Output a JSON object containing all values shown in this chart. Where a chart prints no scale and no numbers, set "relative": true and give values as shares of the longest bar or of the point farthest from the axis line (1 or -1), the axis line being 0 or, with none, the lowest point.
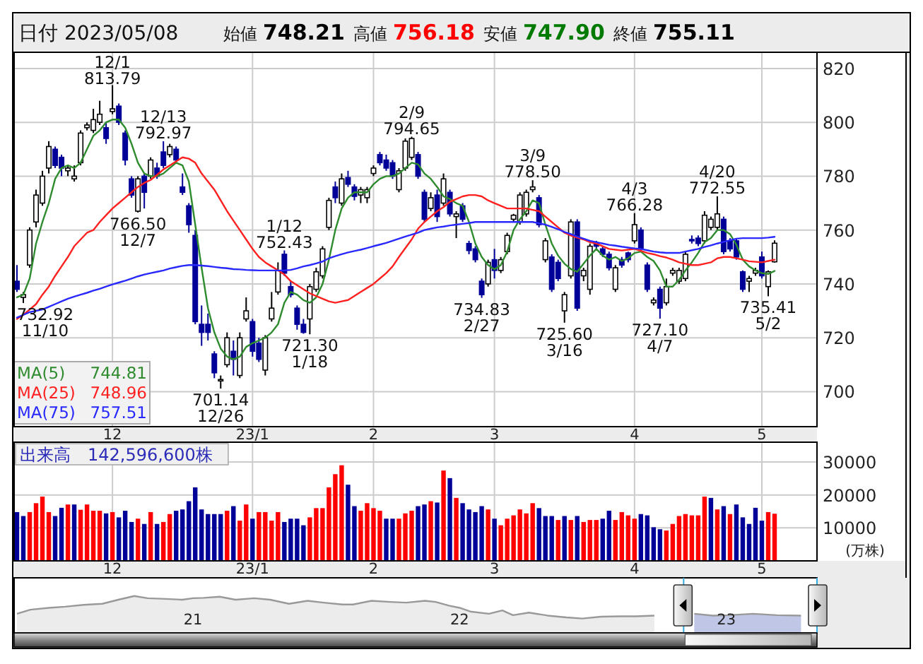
{
  "chart_data": [
    {
      "type": "candlestick",
      "title": "日付 2023/05/08",
      "annotations": [
        "始値 748.21",
        "高値 756.18",
        "安値 747.90",
        "終値 755.11",
        {
          "text": "12/1\n813.79",
          "y": 813.79
        },
        {
          "text": "12/13\n792.97",
          "y": 792.97
        },
        {
          "text": "1/12\n752.43",
          "y": 752.43
        },
        {
          "text": "2/9\n794.65",
          "y": 794.65
        },
        {
          "text": "3/9\n778.50",
          "y": 778.5
        },
        {
          "text": "4/3\n766.28",
          "y": 766.28
        },
        {
          "text": "4/20\n772.55",
          "y": 772.55
        },
        {
          "text": "732.92\n11/10",
          "y": 732.92
        },
        {
          "text": "766.50\n12/7",
          "y": 766.5
        },
        {
          "text": "701.14\n12/26",
          "y": 701.14
        },
        {
          "text": "721.30\n1/18",
          "y": 721.3
        },
        {
          "text": "734.83\n2/27",
          "y": 734.83
        },
        {
          "text": "725.60\n3/16",
          "y": 725.6
        },
        {
          "text": "727.10\n4/7",
          "y": 727.1
        },
        {
          "text": "735.41\n5/2",
          "y": 735.41
        }
      ],
      "categories": [
        null,
        null,
        null,
        null,
        null,
        null,
        null,
        null,
        null,
        null,
        null,
        null,
        null,
        null,
        null,
        "12",
        null,
        null,
        null,
        null,
        null,
        null,
        null,
        null,
        null,
        null,
        null,
        null,
        null,
        null,
        null,
        null,
        null,
        null,
        null,
        null,
        null,
        "23/1",
        null,
        null,
        null,
        null,
        null,
        null,
        null,
        null,
        null,
        null,
        null,
        null,
        null,
        null,
        null,
        null,
        null,
        null,
        "2",
        null,
        null,
        null,
        null,
        null,
        null,
        null,
        null,
        null,
        null,
        null,
        null,
        null,
        null,
        null,
        null,
        null,
        null,
        "3",
        null,
        null,
        null,
        null,
        null,
        null,
        null,
        null,
        null,
        null,
        null,
        null,
        null,
        null,
        null,
        null,
        null,
        null,
        null,
        null,
        null,
        "4",
        null,
        null,
        null,
        null,
        null,
        null,
        null,
        null,
        null,
        null,
        null,
        null,
        null,
        null,
        null,
        null,
        null,
        null,
        null,
        "5",
        null,
        null
      ],
      "ohlc": [
        [
          741,
          747,
          737,
          738
        ],
        [
          735,
          737,
          732.92,
          736
        ],
        [
          747,
          761,
          746,
          760
        ],
        [
          763,
          775,
          761,
          773
        ],
        [
          770,
          782,
          769,
          780
        ],
        [
          783,
          793,
          781,
          791
        ],
        [
          790,
          791,
          783,
          784
        ],
        [
          787,
          788,
          780,
          783
        ],
        [
          782,
          784,
          780,
          783
        ],
        [
          779,
          784,
          778,
          780
        ],
        [
          785,
          797,
          784,
          796
        ],
        [
          798,
          800,
          797,
          799
        ],
        [
          797,
          805,
          796,
          801
        ],
        [
          800,
          808,
          799,
          803
        ],
        [
          798,
          800,
          792,
          794
        ],
        [
          804,
          813.79,
          803,
          805
        ],
        [
          806,
          807,
          799,
          800
        ],
        [
          796,
          797,
          784,
          786
        ],
        [
          779,
          780,
          772,
          773
        ],
        [
          767,
          780,
          766.5,
          779
        ],
        [
          780,
          781,
          768,
          774
        ],
        [
          780,
          787,
          779,
          786
        ],
        [
          783,
          785,
          779,
          780
        ],
        [
          789,
          792.97,
          783,
          784
        ],
        [
          788,
          792,
          787,
          791
        ],
        [
          790,
          791,
          785,
          786
        ],
        [
          776,
          781,
          773,
          774
        ],
        [
          769,
          770,
          759,
          762
        ],
        [
          758,
          760,
          725,
          726
        ],
        [
          725,
          732,
          717,
          722
        ],
        [
          725,
          729,
          719,
          722
        ],
        [
          714,
          715,
          705,
          707
        ],
        [
          704,
          706,
          701.14,
          704.5
        ],
        [
          710,
          722,
          709,
          720
        ],
        [
          715,
          719,
          706,
          712
        ],
        [
          706,
          722,
          705,
          720
        ],
        [
          727,
          735,
          726,
          730
        ],
        [
          726,
          727,
          713,
          715
        ],
        [
          718,
          720,
          711,
          712
        ],
        [
          708,
          721,
          706,
          720
        ],
        [
          727,
          737,
          726,
          731
        ],
        [
          737,
          748,
          736,
          745
        ],
        [
          751,
          752.43,
          743,
          744
        ],
        [
          739,
          741,
          735,
          736
        ],
        [
          731,
          732,
          723,
          725
        ],
        [
          725,
          727,
          721.5,
          722
        ],
        [
          727,
          740,
          721.3,
          739
        ],
        [
          738,
          746,
          737,
          744.5
        ],
        [
          743,
          754,
          742,
          753
        ],
        [
          761,
          772,
          760,
          771
        ],
        [
          776,
          778,
          770,
          772
        ],
        [
          770,
          781,
          769,
          779
        ],
        [
          779.5,
          782,
          776,
          777
        ],
        [
          776,
          777,
          771,
          772.5
        ],
        [
          773,
          776,
          770,
          775
        ],
        [
          772,
          776,
          770,
          775
        ],
        [
          781,
          784,
          780,
          783
        ],
        [
          788,
          789,
          784,
          785
        ],
        [
          786,
          788,
          782,
          783
        ],
        [
          785,
          786,
          779,
          780
        ],
        [
          775,
          783,
          774,
          782
        ],
        [
          783,
          794,
          782,
          793
        ],
        [
          787,
          794.65,
          786,
          794
        ],
        [
          788,
          789,
          779,
          780
        ],
        [
          774,
          775,
          763,
          764
        ],
        [
          768,
          774,
          767,
          772
        ],
        [
          773,
          775,
          763,
          765
        ],
        [
          770,
          781,
          769,
          779
        ],
        [
          774,
          775,
          765,
          766
        ],
        [
          765,
          767,
          757,
          766
        ],
        [
          769,
          770,
          763,
          764
        ],
        [
          755,
          756,
          751,
          752.4
        ],
        [
          753,
          754,
          748,
          749
        ],
        [
          741,
          742,
          734.83,
          736
        ],
        [
          740,
          749,
          739,
          748
        ],
        [
          749,
          753,
          742,
          745
        ],
        [
          745,
          750,
          744,
          749
        ],
        [
          752,
          759,
          751,
          758
        ],
        [
          764,
          766,
          763,
          765.5
        ],
        [
          763,
          774,
          762,
          773
        ],
        [
          766,
          775,
          765,
          774
        ],
        [
          775,
          778.5,
          774,
          776
        ],
        [
          772,
          773,
          761,
          762
        ],
        [
          749,
          757,
          748,
          756
        ],
        [
          750,
          751,
          737,
          738
        ],
        [
          748,
          749,
          741,
          742
        ],
        [
          730,
          737,
          725.6,
          736
        ],
        [
          743,
          764,
          742,
          763
        ],
        [
          763,
          764,
          730,
          731
        ],
        [
          743,
          746,
          741,
          745
        ],
        [
          738,
          755,
          736,
          754
        ],
        [
          755,
          756,
          753,
          754
        ],
        [
          753,
          754,
          750,
          751
        ],
        [
          751,
          752,
          745,
          746
        ],
        [
          738,
          747,
          737,
          746
        ],
        [
          749,
          750,
          746,
          747
        ],
        [
          751.5,
          752,
          748,
          749
        ],
        [
          756,
          766.28,
          755,
          762
        ],
        [
          760,
          761,
          752,
          753
        ],
        [
          747,
          748,
          737,
          738
        ],
        [
          733,
          735,
          732,
          734
        ],
        [
          738,
          739,
          727.1,
          731
        ],
        [
          733,
          742,
          732,
          739
        ],
        [
          744,
          746,
          743,
          745
        ],
        [
          741,
          746,
          740,
          745
        ],
        [
          742,
          752,
          741,
          751
        ],
        [
          756.5,
          758,
          755,
          756
        ],
        [
          757,
          758,
          754,
          755
        ],
        [
          756,
          767,
          755,
          765.5
        ],
        [
          761,
          765,
          760,
          764
        ],
        [
          761,
          772.55,
          760,
          766
        ],
        [
          764,
          765,
          751,
          752
        ],
        [
          756,
          757,
          752,
          753
        ],
        [
          756,
          757,
          749,
          750
        ],
        [
          744.5,
          745,
          737,
          738
        ],
        [
          741,
          743,
          737,
          742
        ],
        [
          744,
          746,
          743,
          745
        ],
        [
          750,
          752,
          742,
          743
        ],
        [
          739,
          745,
          735.41,
          744.5
        ],
        [
          748.21,
          756.18,
          747.9,
          755.11
        ]
      ],
      "series": [
        {
          "type": "line",
          "name": "MA(5) 744.81",
          "color": "#2e8b2e",
          "values": [
            735,
            736,
            742,
            755,
            763,
            770,
            779,
            783,
            784,
            783,
            785,
            790,
            795,
            797,
            800,
            801,
            801,
            798,
            792,
            785,
            781,
            780,
            780,
            781,
            783,
            785,
            784,
            778,
            762,
            746,
            731,
            722,
            716,
            713,
            712,
            713,
            716.6,
            718,
            719,
            720,
            722,
            725,
            733,
            737,
            736,
            734,
            733,
            735,
            740,
            749,
            760,
            768,
            772,
            774,
            774,
            774,
            777,
            779,
            780,
            780,
            781,
            783,
            785,
            784.4,
            781,
            779,
            776,
            772.5,
            771.5,
            770,
            769,
            763,
            755,
            750,
            747,
            745.4,
            747,
            752,
            760,
            764,
            767,
            771,
            770,
            762,
            755,
            750.5,
            747.5,
            745.5,
            744.5,
            747.5,
            750.5,
            753,
            750.5,
            749,
            750,
            748.5,
            749.5,
            751.5,
            752,
            750,
            748.5,
            745,
            739,
            739,
            741.5,
            745,
            748,
            751.5,
            755.5,
            757,
            760,
            760,
            758.5,
            754.5,
            749,
            746.5,
            745,
            744,
            743.7,
            744.8
          ]
        },
        {
          "type": "line",
          "name": "MA(25) 748.96",
          "color": "#ff2020",
          "values": [
            727,
            728.5,
            730.5,
            732.5,
            736,
            739,
            743,
            746.5,
            750,
            754,
            756.5,
            759,
            760,
            763,
            765.5,
            768,
            770,
            772,
            774,
            776,
            777.5,
            778.6,
            780.5,
            782.5,
            784,
            785.5,
            787,
            786.5,
            785,
            781,
            778,
            775,
            771,
            767,
            763.5,
            760,
            756.5,
            753,
            750,
            748,
            746.5,
            745,
            743.5,
            741,
            739.5,
            738,
            736.5,
            735.5,
            734.5,
            733.5,
            733,
            733.5,
            734,
            735.5,
            737,
            738.5,
            740,
            742,
            744,
            746.5,
            750,
            753.3,
            756.5,
            760.5,
            763,
            765,
            767,
            768.5,
            770.5,
            771.5,
            772.5,
            773,
            773,
            772.5,
            771,
            770,
            769,
            768,
            768,
            768,
            768,
            767.5,
            767,
            765,
            763,
            761,
            759,
            758,
            757.2,
            756.5,
            755.5,
            755,
            754,
            753,
            752.7,
            752.4,
            752.7,
            753,
            752.3,
            751.5,
            751,
            750.3,
            749.8,
            749,
            748,
            747.5,
            747,
            747,
            747.5,
            748,
            749.5,
            750,
            750,
            749.5,
            749,
            748.4,
            748.2,
            748,
            748.5,
            749
          ]
        },
        {
          "type": "line",
          "name": "MA(75) 757.51",
          "color": "#2828ff",
          "values": [
            727.5,
            728.5,
            729.5,
            730,
            730.5,
            731.5,
            732.5,
            733.5,
            734.5,
            735.3,
            736,
            736.7,
            737.5,
            738.2,
            739,
            739.8,
            740.5,
            741.2,
            742,
            742.8,
            743.5,
            744,
            744.5,
            745,
            745.7,
            746.2,
            746.7,
            747,
            747,
            746.8,
            746.6,
            746.3,
            746,
            745.8,
            745.5,
            745.4,
            745.2,
            745.1,
            745,
            745,
            745,
            745,
            745,
            745.2,
            745.8,
            746.5,
            747,
            747.6,
            748.3,
            749.5,
            750.3,
            751,
            751.7,
            752.2,
            752.7,
            753.3,
            754,
            754.6,
            755.2,
            756,
            756.8,
            757.6,
            758.3,
            759,
            760,
            760.5,
            761,
            761.3,
            761.7,
            762,
            762.3,
            762.6,
            763,
            763,
            763,
            763,
            763,
            763,
            763,
            763,
            763,
            763,
            762.5,
            762,
            761.2,
            760.3,
            759.3,
            758.5,
            757.6,
            756.8,
            756,
            755.5,
            755,
            754.5,
            754.2,
            753.8,
            753.5,
            753.2,
            753,
            752.5,
            752,
            751.7,
            751.5,
            751.5,
            751.5,
            752,
            752.5,
            753,
            753.7,
            754.3,
            755,
            755.6,
            756.2,
            756.8,
            757,
            757,
            757,
            757,
            757.2,
            757.5
          ]
        }
      ],
      "ylim": [
        687,
        826
      ],
      "yticks": [
        700,
        720,
        740,
        760,
        780,
        800,
        820
      ],
      "grid": true,
      "legend": "bottom left"
    },
    {
      "type": "bar",
      "title": "出来高　142,596,600株",
      "ylabel": "(万株)",
      "categories": [
        null,
        null,
        null,
        null,
        null,
        null,
        null,
        null,
        null,
        null,
        null,
        null,
        null,
        null,
        null,
        "12",
        null,
        null,
        null,
        null,
        null,
        null,
        null,
        null,
        null,
        null,
        null,
        null,
        null,
        null,
        null,
        null,
        null,
        null,
        null,
        null,
        null,
        "23/1",
        null,
        null,
        null,
        null,
        null,
        null,
        null,
        null,
        null,
        null,
        null,
        null,
        null,
        null,
        null,
        null,
        null,
        null,
        "2",
        null,
        null,
        null,
        null,
        null,
        null,
        null,
        null,
        null,
        null,
        null,
        null,
        null,
        null,
        null,
        null,
        null,
        null,
        "3",
        null,
        null,
        null,
        null,
        null,
        null,
        null,
        null,
        null,
        null,
        null,
        null,
        null,
        null,
        null,
        null,
        null,
        null,
        null,
        null,
        null,
        "4",
        null,
        null,
        null,
        null,
        null,
        null,
        null,
        null,
        null,
        null,
        null,
        null,
        null,
        null,
        null,
        null,
        null,
        null,
        null,
        "5",
        null,
        null
      ],
      "values": [
        14800,
        13600,
        14800,
        17500,
        19500,
        14800,
        13600,
        16100,
        17100,
        17100,
        15500,
        17100,
        15200,
        15200,
        14400,
        14800,
        13200,
        15200,
        11800,
        12800,
        11200,
        14800,
        11200,
        11800,
        14200,
        15200,
        15600,
        18100,
        22300,
        15600,
        14200,
        14200,
        14200,
        15200,
        16600,
        12200,
        17100,
        12800,
        14800,
        14800,
        12200,
        14800,
        11800,
        12800,
        12800,
        10800,
        13200,
        16000,
        16000,
        22300,
        26300,
        29000,
        23100,
        16600,
        15200,
        17500,
        16000,
        15200,
        12800,
        12800,
        12800,
        14400,
        15200,
        16600,
        17100,
        18100,
        17700,
        27400,
        25100,
        19100,
        17500,
        15600,
        14800,
        16600,
        15600,
        12800,
        10800,
        12800,
        13800,
        15600,
        14400,
        17500,
        16000,
        13600,
        13600,
        12400,
        13600,
        12400,
        13600,
        11800,
        12400,
        12400,
        12800,
        15200,
        12400,
        14800,
        13800,
        12800,
        14200,
        13800,
        10200,
        9600,
        9200,
        11200,
        13600,
        14200,
        13800,
        13800,
        19500,
        19100,
        15600,
        16600,
        14200,
        17100,
        13200,
        11200,
        16100,
        12200,
        14800,
        14300
      ],
      "colors": [
        "#000099",
        "#000099",
        "#ff0000",
        "#ff0000",
        "#ff0000",
        "#ff0000",
        "#000099",
        "#000099",
        "#ff0000",
        "#000099",
        "#ff0000",
        "#ff0000",
        "#ff0000",
        "#ff0000",
        "#000099",
        "#ff0000",
        "#000099",
        "#000099",
        "#000099",
        "#ff0000",
        "#000099",
        "#ff0000",
        "#000099",
        "#ff0000",
        "#ff0000",
        "#000099",
        "#000099",
        "#000099",
        "#000099",
        "#000099",
        "#000099",
        "#000099",
        "#000099",
        "#ff0000",
        "#000099",
        "#ff0000",
        "#ff0000",
        "#000099",
        "#ff0000",
        "#ff0000",
        "#ff0000",
        "#ff0000",
        "#000099",
        "#000099",
        "#000099",
        "#000099",
        "#ff0000",
        "#ff0000",
        "#ff0000",
        "#ff0000",
        "#ff0000",
        "#ff0000",
        "#000099",
        "#000099",
        "#ff0000",
        "#ff0000",
        "#ff0000",
        "#ff0000",
        "#000099",
        "#000099",
        "#ff0000",
        "#ff0000",
        "#ff0000",
        "#000099",
        "#000099",
        "#ff0000",
        "#000099",
        "#ff0000",
        "#000099",
        "#ff0000",
        "#000099",
        "#000099",
        "#000099",
        "#000099",
        "#ff0000",
        "#000099",
        "#ff0000",
        "#ff0000",
        "#ff0000",
        "#ff0000",
        "#ff0000",
        "#ff0000",
        "#000099",
        "#000099",
        "#000099",
        "#ff0000",
        "#000099",
        "#ff0000",
        "#000099",
        "#ff0000",
        "#ff0000",
        "#ff0000",
        "#000099",
        "#000099",
        "#ff0000",
        "#ff0000",
        "#ff0000",
        "#ff0000",
        "#000099",
        "#000099",
        "#000099",
        "#000099",
        "#ff0000",
        "#ff0000",
        "#ff0000",
        "#ff0000",
        "#ff0000",
        "#ff0000",
        "#ff0000",
        "#000099",
        "#ff0000",
        "#000099",
        "#ff0000",
        "#000099",
        "#000099",
        "#000099",
        "#000099",
        "#000099",
        "#ff0000",
        "#ff0000"
      ],
      "ylim": [
        0,
        36000
      ],
      "yticks": [
        10000,
        20000,
        30000
      ],
      "grid": true
    },
    {
      "type": "area",
      "relative": true,
      "color": "#999999",
      "tick_labels": "x",
      "x": [
        2020.34,
        2020.39,
        2020.46,
        2020.52,
        2020.59,
        2020.66,
        2020.72,
        2020.78,
        2020.83,
        2020.9,
        2020.96,
        2021.0,
        2021.04,
        2021.1,
        2021.16,
        2021.23,
        2021.29,
        2021.36,
        2021.43,
        2021.49,
        2021.56,
        2021.6,
        2021.67,
        2021.74,
        2021.8,
        2021.87,
        2021.91,
        2021.96,
        2022.0,
        2022.04,
        2022.11,
        2022.16,
        2022.2,
        2022.26,
        2022.33,
        2022.4,
        2022.46,
        2022.53,
        2022.6,
        2022.66,
        2022.73,
        2022.82,
        2022.88,
        2022.95,
        2023.01,
        2023.1,
        2023.19,
        2023.28
      ],
      "values": [
        0.52,
        0.63,
        0.68,
        0.71,
        0.76,
        0.79,
        0.9,
        1,
        0.94,
        0.92,
        0.9,
        0.94,
        0.95,
        0.98,
        0.9,
        0.94,
        0.9,
        0.79,
        0.87,
        0.82,
        0.77,
        0.77,
        0.87,
        0.84,
        0.82,
        0.87,
        0.84,
        0.74,
        0.68,
        0.58,
        0.52,
        0.61,
        0.48,
        0.55,
        0.47,
        0.42,
        0.39,
        0.44,
        0.45,
        0.45,
        0.47,
        null,
        0.52,
        0.47,
        0.48,
        0.52,
        0.48,
        0.47
      ],
      "xlim": [
        2020.34,
        2023.34
      ],
      "xticks": [
        {
          "value": 2021,
          "label": "21"
        },
        {
          "value": 2022,
          "label": "22"
        },
        {
          "value": 2023,
          "label": "23"
        }
      ],
      "bands": [
        {
          "axis": "x",
          "from": 2022.84,
          "to": 2023.34,
          "color": "#b4c0f5"
        }
      ]
    }
  ]
}
